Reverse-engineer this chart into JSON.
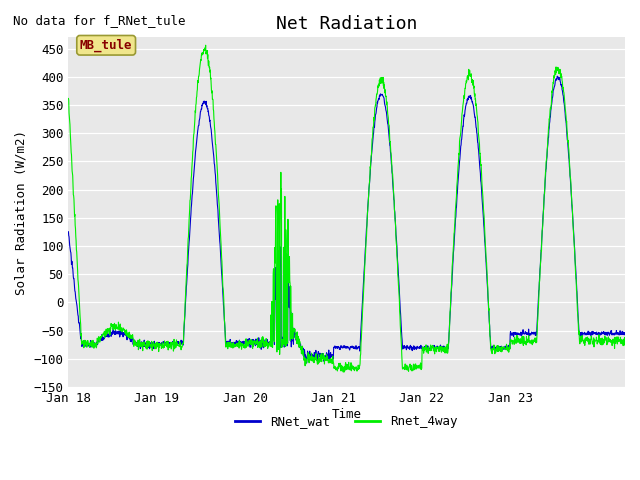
{
  "title": "Net Radiation",
  "xlabel": "Time",
  "ylabel": "Solar Radiation (W/m2)",
  "no_data_text": "No data for f_RNet_tule",
  "legend_label_text": "MB_tule",
  "legend_entries": [
    "RNet_wat",
    "Rnet_4way"
  ],
  "line_color_wat": "#0000cc",
  "line_color_4way": "#00ee00",
  "ylim": [
    -150,
    470
  ],
  "yticks": [
    -150,
    -100,
    -50,
    0,
    50,
    100,
    150,
    200,
    250,
    300,
    350,
    400,
    450
  ],
  "xtick_labels": [
    "Jan 18",
    "Jan 19",
    "Jan 20",
    "Jan 21",
    "Jan 22",
    "Jan 23"
  ],
  "plot_bg_color": "#e8e8e8",
  "title_fontsize": 13,
  "axis_label_fontsize": 9,
  "tick_label_fontsize": 9,
  "n_days": 6.3,
  "pts_per_day": 288
}
